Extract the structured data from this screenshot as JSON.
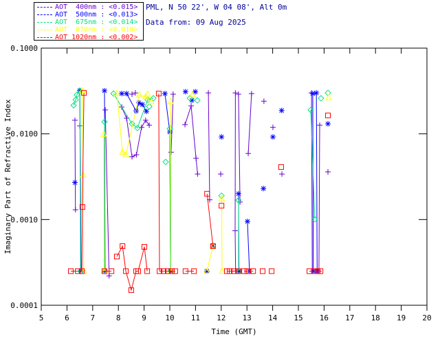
{
  "header": {
    "line1": "PML, N 50 22', W 04 08', Alt 0m",
    "line2": "Data from: 09 Aug 2025",
    "color": "#000099"
  },
  "chart_data": {
    "type": "line",
    "title": "",
    "xlabel": "Time (GMT)",
    "ylabel": "Imaginary Part of Refractive Index",
    "grid": false,
    "legend_position": "top-left",
    "x_range": [
      5,
      20
    ],
    "x_ticks": [
      5,
      6,
      7,
      8,
      9,
      10,
      11,
      12,
      13,
      14,
      15,
      16,
      17,
      18,
      19,
      20
    ],
    "y_scale": "log",
    "y_range": [
      0.0001,
      0.1
    ],
    "y_ticks": [
      {
        "value": 0.1,
        "label": "0.1000"
      },
      {
        "value": 0.01,
        "label": "0.0100"
      },
      {
        "value": 0.001,
        "label": "0.0010"
      },
      {
        "value": 0.0001,
        "label": "0.0001"
      }
    ],
    "series": [
      {
        "name": "AOT  400nm",
        "legend_value": "<0.015>",
        "color": "#6600CC",
        "marker": "plus",
        "segments": [
          [
            [
              6.31,
              0.0144
            ],
            [
              6.33,
              0.0013
            ]
          ],
          [
            [
              7.49,
              0.019
            ],
            [
              7.64,
              0.00022
            ]
          ],
          [
            [
              8.13,
              0.0205
            ],
            [
              8.32,
              0.0152
            ],
            [
              8.53,
              0.0054
            ],
            [
              8.7,
              0.0057
            ],
            [
              8.9,
              0.0119
            ],
            [
              9.06,
              0.0144
            ],
            [
              9.2,
              0.0126
            ]
          ],
          [
            [
              10.05,
              0.0061
            ],
            [
              10.13,
              0.029
            ]
          ],
          [
            [
              10.59,
              0.0128
            ],
            [
              10.83,
              0.0212
            ],
            [
              11.02,
              0.0052
            ],
            [
              11.08,
              0.0034
            ]
          ],
          [
            [
              11.5,
              0.03
            ],
            [
              11.55,
              0.0017
            ]
          ],
          [
            [
              12.55,
              0.03
            ],
            [
              12.54,
              0.00074
            ],
            [
              12.56,
              0.00025
            ]
          ],
          [
            [
              12.67,
              0.029
            ],
            [
              12.73,
              0.0016
            ]
          ],
          [
            [
              13.05,
              0.0059
            ],
            [
              13.18,
              0.0295
            ]
          ],
          [
            [
              15.51,
              0.03
            ],
            [
              15.54,
              0.00025
            ]
          ],
          [
            [
              15.8,
              0.00025
            ],
            [
              15.83,
              0.0126
            ]
          ]
        ],
        "points": [
          [
            6.5,
            0.0124
          ],
          [
            8.53,
            0.029
          ],
          [
            8.66,
            0.03
          ],
          [
            11.98,
            0.0034
          ],
          [
            13.66,
            0.024
          ],
          [
            14.01,
            0.0119
          ],
          [
            14.36,
            0.0034
          ],
          [
            16.15,
            0.0036
          ]
        ]
      },
      {
        "name": "AOT  500nm",
        "legend_value": "<0.013>",
        "color": "#0000FF",
        "marker": "asterisk",
        "segments": [
          [
            [
              6.5,
              0.032
            ],
            [
              6.55,
              0.00025
            ]
          ],
          [
            [
              7.46,
              0.0318
            ],
            [
              7.48,
              0.00025
            ]
          ],
          [
            [
              8.13,
              0.0295
            ],
            [
              8.32,
              0.0295
            ],
            [
              8.69,
              0.0185
            ],
            [
              8.8,
              0.023
            ],
            [
              8.93,
              0.022
            ],
            [
              9.09,
              0.0183
            ]
          ],
          [
            [
              9.81,
              0.0295
            ],
            [
              10.0,
              0.0105
            ],
            [
              10.03,
              0.00025
            ]
          ],
          [
            [
              12.67,
              0.002
            ],
            [
              12.69,
              0.00025
            ]
          ],
          [
            [
              13.02,
              0.00095
            ],
            [
              13.1,
              0.00025
            ]
          ],
          [
            [
              15.56,
              0.0295
            ],
            [
              15.58,
              0.00025
            ]
          ],
          [
            [
              15.7,
              0.03
            ],
            [
              15.73,
              0.00025
            ]
          ]
        ],
        "points": [
          [
            6.31,
            0.0027
          ],
          [
            10.61,
            0.031
          ],
          [
            10.86,
            0.0246
          ],
          [
            10.99,
            0.031
          ],
          [
            11.44,
            0.00025
          ],
          [
            11.68,
            0.00049
          ],
          [
            12.01,
            0.0092
          ],
          [
            13.64,
            0.0023
          ],
          [
            14.01,
            0.0092
          ],
          [
            14.35,
            0.0187
          ],
          [
            16.15,
            0.0131
          ]
        ]
      },
      {
        "name": "AOT  675nm",
        "legend_value": "<0.014>",
        "color": "#00E080",
        "marker": "diamond",
        "segments": [
          [
            [
              6.26,
              0.0215
            ],
            [
              6.34,
              0.025
            ],
            [
              6.39,
              0.0285
            ],
            [
              6.5,
              0.032
            ],
            [
              6.53,
              0.00025
            ]
          ],
          [
            [
              7.46,
              0.0138
            ],
            [
              7.47,
              0.00025
            ]
          ],
          [
            [
              7.81,
              0.0295
            ],
            [
              8.53,
              0.0131
            ],
            [
              8.74,
              0.0117
            ],
            [
              9.14,
              0.025
            ],
            [
              9.36,
              0.026
            ]
          ],
          [
            [
              10.0,
              0.0115
            ],
            [
              10.03,
              0.00025
            ]
          ],
          [
            [
              12.67,
              0.00168
            ],
            [
              12.68,
              0.00025
            ]
          ],
          [
            [
              15.48,
              0.019
            ],
            [
              15.64,
              0.00101
            ]
          ]
        ],
        "points": [
          [
            9.2,
            0.0208
          ],
          [
            9.84,
            0.0047
          ],
          [
            10.78,
            0.026
          ],
          [
            11.07,
            0.0246
          ],
          [
            12.01,
            0.0019
          ],
          [
            15.88,
            0.026
          ],
          [
            16.15,
            0.03
          ]
        ]
      },
      {
        "name": "AOT  870nm",
        "legend_value": "<0.010>",
        "color": "#FFFF00",
        "marker": "triangle",
        "segments": [
          [
            [
              6.6,
              0.032
            ],
            [
              6.63,
              0.0033
            ],
            [
              6.65,
              0.00025
            ]
          ],
          [
            [
              7.43,
              0.0099
            ],
            [
              7.44,
              0.00025
            ]
          ],
          [
            [
              7.94,
              0.0295
            ],
            [
              8.16,
              0.0061
            ],
            [
              8.29,
              0.0057
            ],
            [
              8.82,
              0.0285
            ],
            [
              9.06,
              0.027
            ],
            [
              9.28,
              0.0237
            ]
          ],
          [
            [
              10.03,
              0.0237
            ],
            [
              10.05,
              0.00025
            ]
          ],
          [
            [
              11.44,
              0.00025
            ],
            [
              11.68,
              0.00049
            ]
          ],
          [
            [
              12.02,
              0.00174
            ],
            [
              12.03,
              0.00025
            ]
          ]
        ],
        "points": [
          [
            9.14,
            0.029
          ],
          [
            10.88,
            0.0285
          ],
          [
            16.18,
            0.0264
          ]
        ]
      },
      {
        "name": "AOT 1020nm",
        "legend_value": "<0.002>",
        "color": "#FF0000",
        "marker": "square",
        "segments": [
          [
            [
              6.15,
              0.00025
            ],
            [
              6.42,
              0.00025
            ]
          ],
          [
            [
              6.58,
              0.00025
            ],
            [
              6.6,
              0.0014
            ],
            [
              6.66,
              0.03
            ]
          ],
          [
            [
              7.46,
              0.00025
            ],
            [
              7.73,
              0.00025
            ]
          ],
          [
            [
              7.94,
              0.00037
            ],
            [
              8.16,
              0.00049
            ],
            [
              8.29,
              0.00025
            ],
            [
              8.5,
              0.00015
            ],
            [
              8.69,
              0.00025
            ],
            [
              8.77,
              0.00025
            ],
            [
              9.01,
              0.00048
            ],
            [
              9.12,
              0.00025
            ]
          ],
          [
            [
              9.57,
              0.0295
            ],
            [
              9.6,
              0.00025
            ],
            [
              9.76,
              0.00025
            ],
            [
              9.92,
              0.00025
            ],
            [
              10.08,
              0.00025
            ],
            [
              10.21,
              0.00025
            ]
          ],
          [
            [
              10.61,
              0.00025
            ],
            [
              10.94,
              0.00025
            ]
          ],
          [
            [
              11.45,
              0.002
            ],
            [
              11.68,
              0.00049
            ]
          ],
          [
            [
              12.22,
              0.00025
            ],
            [
              12.33,
              0.00025
            ],
            [
              12.49,
              0.00025
            ],
            [
              12.67,
              0.00025
            ]
          ],
          [
            [
              12.89,
              0.00025
            ],
            [
              13.02,
              0.00025
            ],
            [
              13.24,
              0.00025
            ]
          ],
          [
            [
              15.43,
              0.00025
            ],
            [
              15.61,
              0.00025
            ],
            [
              15.75,
              0.00025
            ],
            [
              15.86,
              0.00025
            ]
          ]
        ],
        "points": [
          [
            12.01,
            0.00145
          ],
          [
            13.61,
            0.00025
          ],
          [
            13.96,
            0.00025
          ],
          [
            14.33,
            0.0041
          ],
          [
            16.15,
            0.0164
          ]
        ]
      }
    ]
  }
}
